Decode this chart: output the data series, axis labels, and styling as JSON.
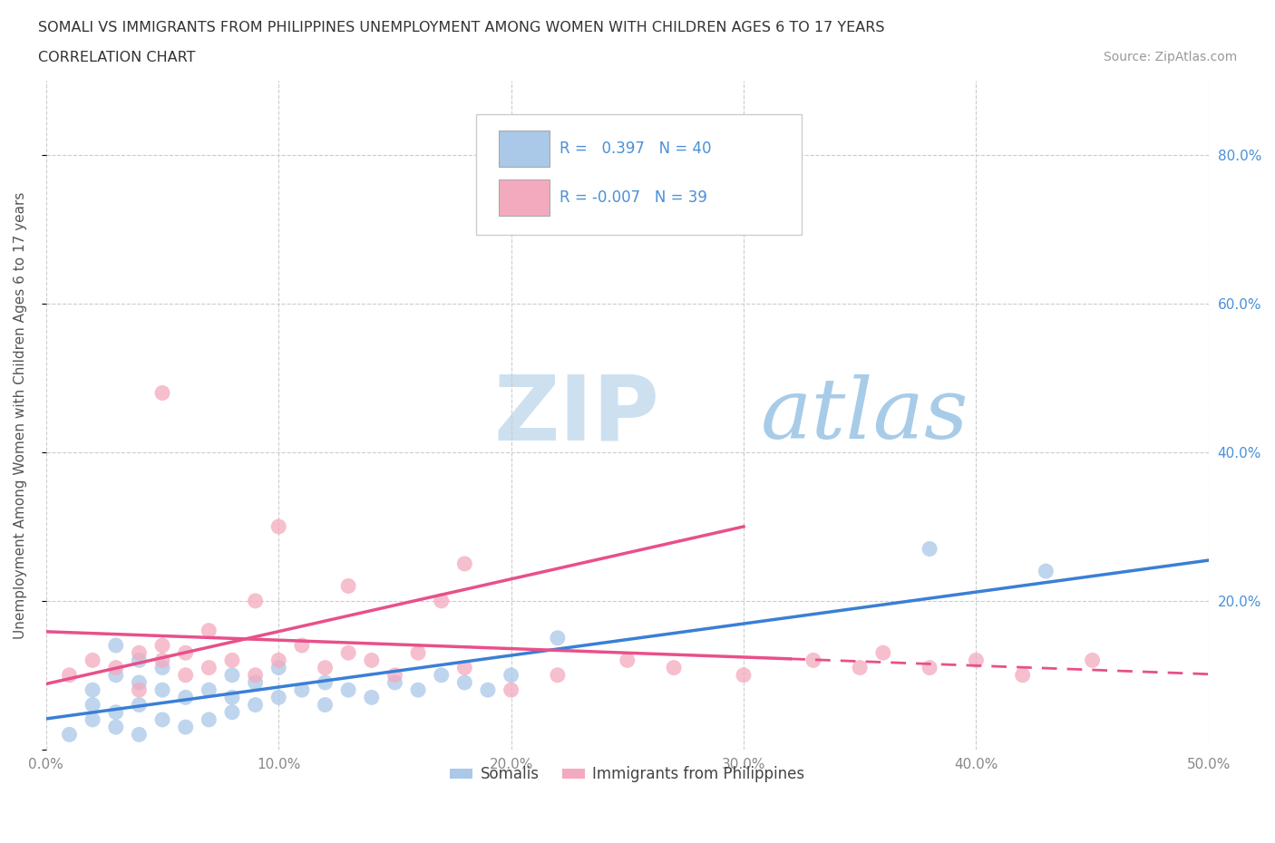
{
  "title_line1": "SOMALI VS IMMIGRANTS FROM PHILIPPINES UNEMPLOYMENT AMONG WOMEN WITH CHILDREN AGES 6 TO 17 YEARS",
  "title_line2": "CORRELATION CHART",
  "source_text": "Source: ZipAtlas.com",
  "ylabel": "Unemployment Among Women with Children Ages 6 to 17 years",
  "xlim": [
    0.0,
    0.5
  ],
  "ylim": [
    0.0,
    0.9
  ],
  "xticks": [
    0.0,
    0.1,
    0.2,
    0.3,
    0.4,
    0.5
  ],
  "yticks": [
    0.0,
    0.2,
    0.4,
    0.6,
    0.8
  ],
  "xticklabels": [
    "0.0%",
    "10.0%",
    "20.0%",
    "30.0%",
    "40.0%",
    "50.0%"
  ],
  "right_yticklabels": [
    "80.0%",
    "60.0%",
    "40.0%",
    "20.0%"
  ],
  "right_ytick_vals": [
    0.8,
    0.6,
    0.4,
    0.2
  ],
  "somali_R": 0.397,
  "somali_N": 40,
  "philippines_R": -0.007,
  "philippines_N": 39,
  "somali_color": "#aac8e8",
  "philippines_color": "#f4aabe",
  "somali_line_color": "#3a7fd5",
  "philippines_line_color": "#e8508a",
  "background_color": "#ffffff",
  "watermark_zip": "ZIP",
  "watermark_atlas": "atlas",
  "watermark_zip_color": "#cde0f0",
  "watermark_atlas_color": "#a8cce8",
  "grid_color": "#cccccc",
  "legend_color": "#4a90d9",
  "somali_scatter_x": [
    0.01,
    0.02,
    0.02,
    0.02,
    0.03,
    0.03,
    0.03,
    0.03,
    0.04,
    0.04,
    0.04,
    0.04,
    0.05,
    0.05,
    0.05,
    0.06,
    0.06,
    0.07,
    0.07,
    0.08,
    0.08,
    0.08,
    0.09,
    0.09,
    0.1,
    0.1,
    0.11,
    0.12,
    0.12,
    0.13,
    0.14,
    0.15,
    0.16,
    0.17,
    0.18,
    0.19,
    0.2,
    0.22,
    0.38,
    0.43
  ],
  "somali_scatter_y": [
    0.02,
    0.04,
    0.06,
    0.08,
    0.03,
    0.05,
    0.1,
    0.14,
    0.02,
    0.06,
    0.09,
    0.12,
    0.04,
    0.08,
    0.11,
    0.03,
    0.07,
    0.04,
    0.08,
    0.05,
    0.07,
    0.1,
    0.06,
    0.09,
    0.07,
    0.11,
    0.08,
    0.06,
    0.09,
    0.08,
    0.07,
    0.09,
    0.08,
    0.1,
    0.09,
    0.08,
    0.1,
    0.15,
    0.27,
    0.24
  ],
  "philippines_scatter_x": [
    0.01,
    0.02,
    0.03,
    0.04,
    0.04,
    0.05,
    0.05,
    0.06,
    0.06,
    0.07,
    0.07,
    0.08,
    0.09,
    0.09,
    0.1,
    0.11,
    0.12,
    0.13,
    0.13,
    0.14,
    0.15,
    0.16,
    0.17,
    0.18,
    0.2,
    0.22,
    0.25,
    0.27,
    0.3,
    0.33,
    0.35,
    0.36,
    0.4,
    0.42,
    0.45,
    0.05,
    0.1,
    0.18,
    0.38
  ],
  "philippines_scatter_y": [
    0.1,
    0.12,
    0.11,
    0.13,
    0.08,
    0.12,
    0.14,
    0.1,
    0.13,
    0.11,
    0.16,
    0.12,
    0.1,
    0.2,
    0.12,
    0.14,
    0.11,
    0.13,
    0.22,
    0.12,
    0.1,
    0.13,
    0.2,
    0.11,
    0.08,
    0.1,
    0.12,
    0.11,
    0.1,
    0.12,
    0.11,
    0.13,
    0.12,
    0.1,
    0.12,
    0.48,
    0.3,
    0.25,
    0.11
  ]
}
